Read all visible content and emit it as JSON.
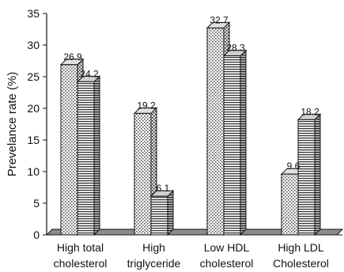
{
  "chart_data": {
    "type": "bar",
    "style": "3d",
    "ylabel": "Prevelance rate (%)",
    "xlabel": "",
    "ylim": [
      0,
      35
    ],
    "yticks": [
      "0",
      "5",
      "10",
      "15",
      "20",
      "25",
      "30",
      "35"
    ],
    "categories": [
      [
        "High total",
        "cholesterol"
      ],
      [
        "High",
        "triglyceride"
      ],
      [
        "Low HDL",
        "cholesterol"
      ],
      [
        "High LDL",
        "Cholesterol"
      ]
    ],
    "series": [
      {
        "pattern": "dotted",
        "values": [
          26.9,
          19.2,
          32.7,
          9.6
        ],
        "labels": [
          "26.9",
          "19.2",
          "32.7",
          "9.6"
        ]
      },
      {
        "pattern": "horizontal-stripes",
        "values": [
          24.2,
          6.1,
          28.3,
          18.2
        ],
        "labels": [
          "24.2",
          "6.1",
          "28.3",
          "18.2"
        ]
      }
    ],
    "grid": false,
    "legend": "none"
  }
}
